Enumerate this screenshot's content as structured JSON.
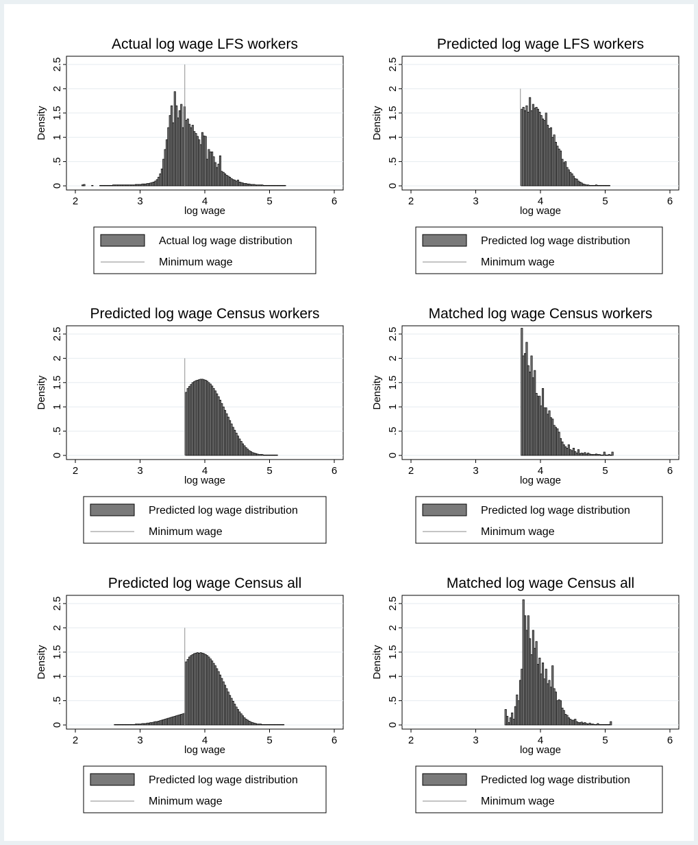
{
  "chart_data": [
    {
      "type": "bar",
      "title": "Actual log wage LFS workers",
      "xlabel": "log wage",
      "ylabel": "Density",
      "xlim": [
        2,
        6
      ],
      "ylim": [
        0,
        2.5
      ],
      "xticks": [
        "2",
        "3",
        "4",
        "5",
        "6"
      ],
      "yticks": [
        "0",
        ".5",
        "1",
        "1.5",
        "2",
        "2.5"
      ],
      "grid": true,
      "legend": {
        "position": "bottom",
        "entries": [
          "Actual log wage distribution",
          "Minimum wage"
        ]
      },
      "minimum_wage": {
        "x": 3.69,
        "height": 2.5
      },
      "bins": {
        "start": 2.1,
        "width": 0.025,
        "values": [
          0.02,
          0.03,
          0,
          0,
          0,
          0,
          0.01,
          0,
          0,
          0,
          0,
          0.01,
          0.01,
          0.01,
          0.01,
          0.01,
          0.01,
          0.01,
          0.01,
          0.02,
          0.02,
          0.02,
          0.02,
          0.02,
          0.02,
          0.02,
          0.02,
          0.02,
          0.02,
          0.02,
          0.02,
          0.02,
          0.02,
          0.03,
          0.03,
          0.03,
          0.03,
          0.04,
          0.04,
          0.04,
          0.05,
          0.05,
          0.06,
          0.07,
          0.08,
          0.1,
          0.13,
          0.18,
          0.25,
          0.35,
          0.55,
          0.75,
          0.95,
          1.2,
          1.45,
          1.65,
          1.3,
          1.94,
          1.65,
          1.4,
          1.55,
          1.68,
          1.2,
          1.63,
          1.35,
          1.38,
          1.27,
          1.2,
          1.25,
          1.12,
          1.08,
          1.02,
          0.95,
          0.85,
          1.1,
          1.03,
          1.02,
          0.55,
          0.75,
          0.7,
          0.7,
          0.6,
          0.48,
          0.38,
          0.45,
          0.62,
          0.3,
          0.28,
          0.25,
          0.22,
          0.2,
          0.18,
          0.15,
          0.13,
          0.12,
          0.1,
          0.12,
          0.08,
          0.07,
          0.06,
          0.05,
          0.05,
          0.04,
          0.04,
          0.03,
          0.03,
          0.03,
          0.02,
          0.02,
          0.02,
          0.02,
          0.02,
          0.01,
          0.01,
          0.01,
          0.01,
          0.01,
          0.01,
          0.01,
          0.01,
          0.01,
          0.01,
          0.01,
          0.01,
          0.01,
          0.01
        ]
      }
    },
    {
      "type": "bar",
      "title": "Predicted log wage LFS workers",
      "xlabel": "log wage",
      "ylabel": "Density",
      "xlim": [
        2,
        6
      ],
      "ylim": [
        0,
        2.5
      ],
      "xticks": [
        "2",
        "3",
        "4",
        "5",
        "6"
      ],
      "yticks": [
        "0",
        ".5",
        "1",
        "1.5",
        "2",
        "2.5"
      ],
      "grid": true,
      "legend": {
        "position": "bottom",
        "entries": [
          "Predicted log wage distribution",
          "Minimum wage"
        ]
      },
      "minimum_wage": {
        "x": 3.69,
        "height": 2.0
      },
      "bins": {
        "start": 3.7,
        "width": 0.025,
        "values": [
          1.58,
          1.62,
          1.55,
          1.65,
          1.52,
          1.82,
          1.55,
          1.68,
          1.6,
          1.62,
          1.58,
          1.52,
          1.45,
          1.38,
          1.35,
          1.5,
          1.25,
          1.18,
          1.2,
          1.0,
          1.05,
          0.9,
          0.82,
          0.76,
          0.72,
          0.55,
          0.48,
          0.5,
          0.38,
          0.33,
          0.28,
          0.25,
          0.2,
          0.15,
          0.14,
          0.1,
          0.08,
          0.06,
          0.04,
          0.03,
          0.02,
          0.02,
          0.01,
          0.01,
          0.01,
          0.01,
          0.02,
          0.01,
          0.01,
          0.01,
          0.01,
          0.01,
          0.01,
          0.01,
          0.01
        ]
      }
    },
    {
      "type": "bar",
      "title": "Predicted log wage Census workers",
      "xlabel": "log wage",
      "ylabel": "Density",
      "xlim": [
        2,
        6
      ],
      "ylim": [
        0,
        2.5
      ],
      "xticks": [
        "2",
        "3",
        "4",
        "5",
        "6"
      ],
      "yticks": [
        "0",
        ".5",
        "1",
        "1.5",
        "2",
        "2.5"
      ],
      "grid": true,
      "legend": {
        "position": "bottom",
        "entries": [
          "Predicted log wage distribution",
          "Minimum wage"
        ]
      },
      "minimum_wage": {
        "x": 3.69,
        "height": 2.0
      },
      "bins": {
        "start": 3.7,
        "width": 0.025,
        "values": [
          1.3,
          1.38,
          1.42,
          1.46,
          1.5,
          1.52,
          1.54,
          1.55,
          1.56,
          1.57,
          1.57,
          1.56,
          1.55,
          1.53,
          1.5,
          1.47,
          1.43,
          1.38,
          1.33,
          1.27,
          1.21,
          1.14,
          1.07,
          1.0,
          0.93,
          0.86,
          0.79,
          0.72,
          0.65,
          0.58,
          0.52,
          0.46,
          0.4,
          0.34,
          0.29,
          0.24,
          0.2,
          0.16,
          0.13,
          0.1,
          0.08,
          0.06,
          0.05,
          0.04,
          0.03,
          0.02,
          0.02,
          0.02,
          0.01,
          0.01,
          0.01,
          0.01,
          0.01,
          0.01,
          0.01,
          0.01,
          0.01
        ]
      }
    },
    {
      "type": "bar",
      "title": "Matched log wage Census workers",
      "xlabel": "log wage",
      "ylabel": "Density",
      "xlim": [
        2,
        6
      ],
      "ylim": [
        0,
        2.5
      ],
      "xticks": [
        "2",
        "3",
        "4",
        "5",
        "6"
      ],
      "yticks": [
        "0",
        ".5",
        "1",
        "1.5",
        "2",
        "2.5"
      ],
      "grid": true,
      "legend": {
        "position": "bottom",
        "entries": [
          "Predicted log wage distribution",
          "Minimum wage"
        ]
      },
      "minimum_wage": null,
      "bins": {
        "start": 3.7,
        "width": 0.025,
        "values": [
          2.62,
          2.05,
          2.1,
          2.33,
          1.85,
          1.72,
          2.05,
          1.6,
          1.75,
          1.28,
          1.22,
          1.22,
          1.02,
          1.38,
          0.98,
          0.98,
          0.85,
          0.92,
          0.78,
          0.75,
          0.62,
          0.58,
          0.55,
          0.48,
          0.35,
          0.28,
          0.22,
          0.18,
          0.15,
          0.22,
          0.12,
          0.1,
          0.15,
          0.08,
          0.05,
          0.12,
          0.04,
          0.05,
          0.04,
          0.06,
          0.03,
          0.05,
          0.03,
          0.02,
          0.02,
          0.02,
          0.03,
          0.02,
          0.02,
          0.01,
          0.01,
          0.07,
          0.01,
          0.01,
          0.02,
          0.01,
          0.07
        ]
      }
    },
    {
      "type": "bar",
      "title": "Predicted log wage Census all",
      "xlabel": "log wage",
      "ylabel": "Density",
      "xlim": [
        2,
        6
      ],
      "ylim": [
        0,
        2.5
      ],
      "xticks": [
        "2",
        "3",
        "4",
        "5",
        "6"
      ],
      "yticks": [
        "0",
        ".5",
        "1",
        "1.5",
        "2",
        "2.5"
      ],
      "grid": true,
      "legend": {
        "position": "bottom",
        "entries": [
          "Predicted log wage distribution",
          "Minimum wage"
        ]
      },
      "minimum_wage": {
        "x": 3.69,
        "height": 2.0
      },
      "bins": {
        "start": 2.6,
        "width": 0.025,
        "values": [
          0.01,
          0.01,
          0.01,
          0.01,
          0.01,
          0.01,
          0.01,
          0.01,
          0.01,
          0.01,
          0.01,
          0.01,
          0.01,
          0.02,
          0.02,
          0.02,
          0.02,
          0.03,
          0.03,
          0.03,
          0.04,
          0.04,
          0.05,
          0.05,
          0.06,
          0.07,
          0.07,
          0.08,
          0.09,
          0.1,
          0.11,
          0.12,
          0.13,
          0.14,
          0.15,
          0.16,
          0.17,
          0.18,
          0.19,
          0.2,
          0.21,
          0.22,
          0.23,
          0.24,
          1.3,
          1.35,
          1.4,
          1.43,
          1.45,
          1.47,
          1.48,
          1.49,
          1.48,
          1.49,
          1.48,
          1.47,
          1.45,
          1.43,
          1.4,
          1.36,
          1.32,
          1.27,
          1.22,
          1.16,
          1.1,
          1.03,
          0.96,
          0.89,
          0.82,
          0.75,
          0.68,
          0.61,
          0.55,
          0.49,
          0.43,
          0.37,
          0.32,
          0.27,
          0.23,
          0.19,
          0.15,
          0.12,
          0.1,
          0.08,
          0.06,
          0.05,
          0.04,
          0.03,
          0.02,
          0.02,
          0.02,
          0.01,
          0.01,
          0.01,
          0.01,
          0.01,
          0.01,
          0.01,
          0.01,
          0.01,
          0.01,
          0.01,
          0.01,
          0.01,
          0.01
        ]
      }
    },
    {
      "type": "bar",
      "title": "Matched log wage Census all",
      "xlabel": "log wage",
      "ylabel": "Density",
      "xlim": [
        2,
        6
      ],
      "ylim": [
        0,
        2.5
      ],
      "xticks": [
        "2",
        "3",
        "4",
        "5",
        "6"
      ],
      "yticks": [
        "0",
        ".5",
        "1",
        "1.5",
        "2",
        "2.5"
      ],
      "grid": true,
      "legend": {
        "position": "bottom",
        "entries": [
          "Predicted log wage distribution",
          "Minimum wage"
        ]
      },
      "minimum_wage": null,
      "bins": {
        "start": 3.45,
        "width": 0.025,
        "values": [
          0.32,
          0.18,
          0.05,
          0.15,
          0.25,
          0.12,
          0.38,
          0.62,
          0.5,
          0.92,
          1.15,
          2.58,
          2.25,
          1.95,
          2.25,
          1.78,
          1.45,
          1.95,
          1.58,
          1.72,
          1.25,
          1.38,
          1.05,
          1.28,
          0.95,
          1.15,
          0.85,
          0.92,
          0.78,
          1.22,
          0.75,
          0.68,
          0.5,
          0.52,
          0.5,
          0.35,
          0.3,
          0.22,
          0.2,
          0.15,
          0.12,
          0.1,
          0.1,
          0.12,
          0.07,
          0.05,
          0.05,
          0.06,
          0.04,
          0.05,
          0.03,
          0.02,
          0.04,
          0.02,
          0.02,
          0.01,
          0.01,
          0.03,
          0.01,
          0.01,
          0.01,
          0.01,
          0.01,
          0.01,
          0.01,
          0.07
        ]
      }
    }
  ]
}
